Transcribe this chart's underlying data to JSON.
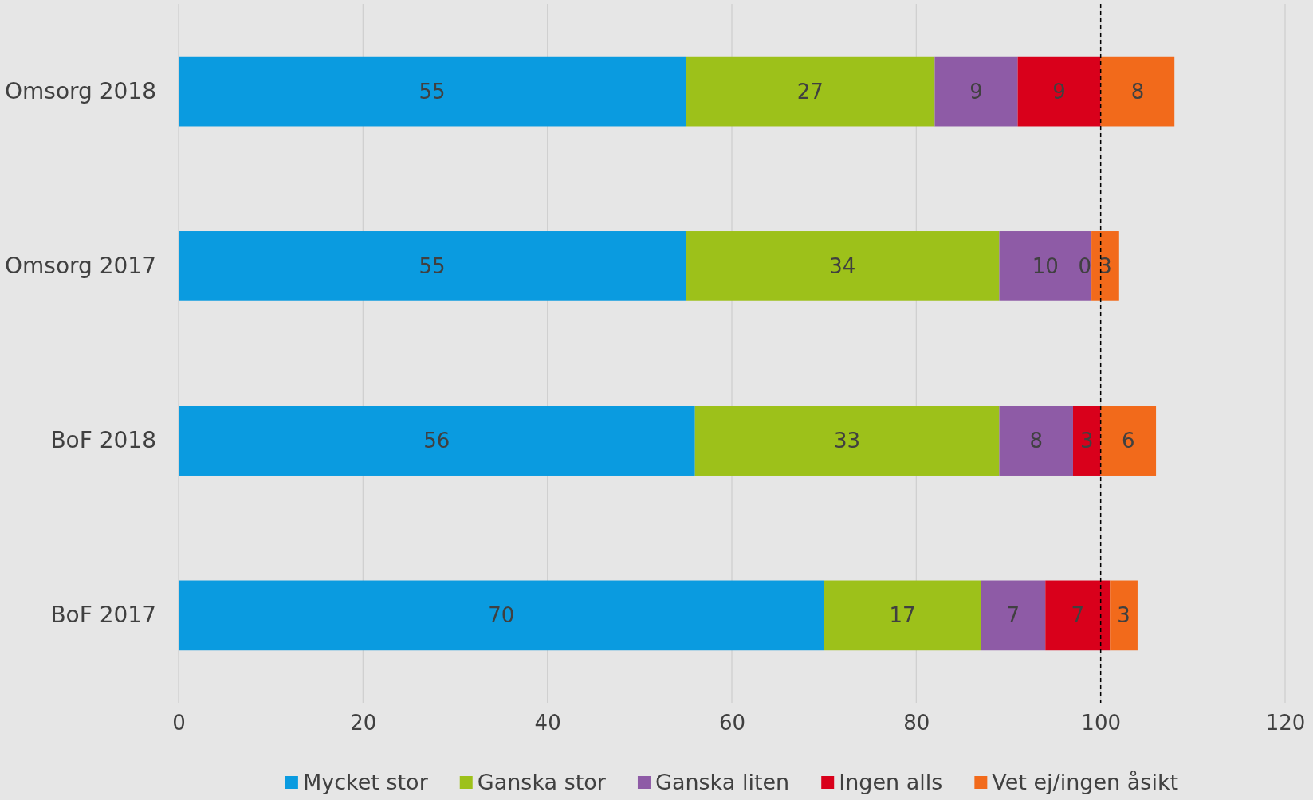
{
  "chart_data": {
    "type": "bar",
    "orientation": "horizontal",
    "stacked": true,
    "categories": [
      "Omsorg 2018",
      "Omsorg 2017",
      "BoF 2018",
      "BoF 2017"
    ],
    "series": [
      {
        "name": "Mycket stor",
        "color": "#0a9be0",
        "values": [
          55,
          55,
          56,
          70
        ]
      },
      {
        "name": "Ganska stor",
        "color": "#9dc11a",
        "values": [
          27,
          34,
          33,
          17
        ]
      },
      {
        "name": "Ganska liten",
        "color": "#8e5ba6",
        "values": [
          9,
          10,
          8,
          7
        ]
      },
      {
        "name": "Ingen alls",
        "color": "#d9001b",
        "values": [
          9,
          0,
          3,
          7
        ]
      },
      {
        "name": "Vet ej/ingen åsikt",
        "color": "#f26a1b",
        "values": [
          8,
          3,
          6,
          3
        ]
      }
    ],
    "xlim": [
      0,
      120
    ],
    "xticks": [
      0,
      20,
      40,
      60,
      80,
      100,
      120
    ],
    "grid": "x",
    "legend": "bottom",
    "data_labels": true,
    "ref_lines": [
      {
        "axis": "x",
        "value": 100,
        "color": "#000000",
        "line_style": "dashed"
      }
    ]
  }
}
